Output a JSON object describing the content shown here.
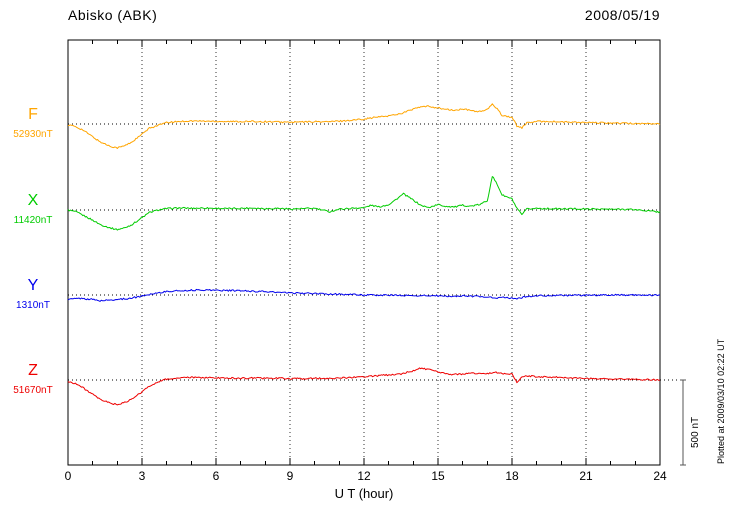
{
  "header": {
    "station": "Abisko (ABK)",
    "date": "2008/05/19"
  },
  "credit": "Plotted at 2009/03/10 02:22 UT",
  "scale_bar": {
    "label": "500 nT",
    "value_nT": 500
  },
  "chart_data": {
    "type": "line",
    "title": "Abisko (ABK) magnetogram 2008/05/19",
    "xlabel": "U T (hour)",
    "xlim": [
      0,
      24
    ],
    "x_ticks": [
      0,
      3,
      6,
      9,
      12,
      15,
      18,
      21,
      24
    ],
    "grid": "dotted vertical lines every 3 hours; dotted horizontal baseline per trace",
    "scale_bar_nT": 500,
    "series": [
      {
        "name": "F",
        "baseline_label": "52930nT",
        "baseline_nT": 52930,
        "color": "#FFA500",
        "points": [
          [
            0,
            -5
          ],
          [
            0.3,
            -15
          ],
          [
            0.6,
            -35
          ],
          [
            1,
            -75
          ],
          [
            1.3,
            -105
          ],
          [
            1.7,
            -130
          ],
          [
            2,
            -140
          ],
          [
            2.3,
            -128
          ],
          [
            2.6,
            -105
          ],
          [
            3,
            -60
          ],
          [
            3.3,
            -25
          ],
          [
            3.7,
            -5
          ],
          [
            4,
            8
          ],
          [
            4.5,
            15
          ],
          [
            5,
            18
          ],
          [
            5.5,
            17
          ],
          [
            6,
            16
          ],
          [
            6.5,
            15
          ],
          [
            7,
            14
          ],
          [
            7.5,
            15
          ],
          [
            8,
            14
          ],
          [
            8.5,
            12
          ],
          [
            9,
            10
          ],
          [
            9.5,
            12
          ],
          [
            10,
            14
          ],
          [
            10.5,
            13
          ],
          [
            11,
            17
          ],
          [
            11.5,
            22
          ],
          [
            12,
            30
          ],
          [
            12.5,
            40
          ],
          [
            13,
            48
          ],
          [
            13.5,
            62
          ],
          [
            14,
            88
          ],
          [
            14.3,
            100
          ],
          [
            14.6,
            104
          ],
          [
            15,
            95
          ],
          [
            15.3,
            86
          ],
          [
            15.7,
            80
          ],
          [
            16,
            88
          ],
          [
            16.3,
            80
          ],
          [
            16.7,
            73
          ],
          [
            17,
            85
          ],
          [
            17.2,
            115
          ],
          [
            17.4,
            92
          ],
          [
            17.6,
            50
          ],
          [
            18,
            40
          ],
          [
            18.2,
            -12
          ],
          [
            18.4,
            -22
          ],
          [
            18.6,
            6
          ],
          [
            19,
            15
          ],
          [
            19.5,
            15
          ],
          [
            20,
            12
          ],
          [
            20.5,
            10
          ],
          [
            21,
            8
          ],
          [
            21.5,
            7
          ],
          [
            22,
            6
          ],
          [
            22.5,
            4
          ],
          [
            23,
            3
          ],
          [
            23.5,
            2
          ],
          [
            24,
            0
          ]
        ]
      },
      {
        "name": "X",
        "baseline_label": "11420nT",
        "baseline_nT": 11420,
        "color": "#00CC00",
        "points": [
          [
            0,
            0
          ],
          [
            0.3,
            -10
          ],
          [
            0.6,
            -30
          ],
          [
            1,
            -60
          ],
          [
            1.3,
            -85
          ],
          [
            1.7,
            -105
          ],
          [
            2,
            -115
          ],
          [
            2.3,
            -105
          ],
          [
            2.6,
            -85
          ],
          [
            3,
            -45
          ],
          [
            3.3,
            -15
          ],
          [
            3.7,
            2
          ],
          [
            4,
            8
          ],
          [
            4.5,
            12
          ],
          [
            5,
            10
          ],
          [
            5.5,
            12
          ],
          [
            6,
            10
          ],
          [
            6.5,
            8
          ],
          [
            7,
            10
          ],
          [
            7.5,
            12
          ],
          [
            8,
            8
          ],
          [
            8.5,
            10
          ],
          [
            9,
            6
          ],
          [
            9.5,
            8
          ],
          [
            10,
            10
          ],
          [
            10.3,
            0
          ],
          [
            10.6,
            -10
          ],
          [
            11,
            5
          ],
          [
            11.5,
            10
          ],
          [
            12,
            14
          ],
          [
            12.3,
            28
          ],
          [
            12.6,
            18
          ],
          [
            13,
            32
          ],
          [
            13.3,
            62
          ],
          [
            13.6,
            95
          ],
          [
            14,
            58
          ],
          [
            14.3,
            28
          ],
          [
            14.6,
            14
          ],
          [
            15,
            32
          ],
          [
            15.3,
            22
          ],
          [
            15.7,
            18
          ],
          [
            16,
            28
          ],
          [
            16.3,
            22
          ],
          [
            16.7,
            32
          ],
          [
            17,
            55
          ],
          [
            17.2,
            200
          ],
          [
            17.4,
            150
          ],
          [
            17.6,
            88
          ],
          [
            18,
            65
          ],
          [
            18.2,
            8
          ],
          [
            18.4,
            -28
          ],
          [
            18.6,
            5
          ],
          [
            19,
            10
          ],
          [
            19.5,
            8
          ],
          [
            20,
            6
          ],
          [
            20.5,
            8
          ],
          [
            21,
            5
          ],
          [
            21.5,
            6
          ],
          [
            22,
            4
          ],
          [
            22.5,
            5
          ],
          [
            23,
            2
          ],
          [
            23.5,
            -5
          ],
          [
            24,
            -12
          ]
        ]
      },
      {
        "name": "Y",
        "baseline_label": "1310nT",
        "baseline_nT": 1310,
        "color": "#0000EE",
        "points": [
          [
            0,
            -25
          ],
          [
            0.5,
            -20
          ],
          [
            1,
            -26
          ],
          [
            1.3,
            -34
          ],
          [
            1.7,
            -30
          ],
          [
            2,
            -26
          ],
          [
            2.5,
            -20
          ],
          [
            3,
            -6
          ],
          [
            3.5,
            10
          ],
          [
            4,
            20
          ],
          [
            4.5,
            25
          ],
          [
            5,
            28
          ],
          [
            5.5,
            30
          ],
          [
            6,
            28
          ],
          [
            6.5,
            26
          ],
          [
            7,
            25
          ],
          [
            7.5,
            22
          ],
          [
            8,
            20
          ],
          [
            8.5,
            15
          ],
          [
            9,
            12
          ],
          [
            9.5,
            10
          ],
          [
            10,
            8
          ],
          [
            10.5,
            6
          ],
          [
            11,
            5
          ],
          [
            11.5,
            3
          ],
          [
            12,
            0
          ],
          [
            12.5,
            -2
          ],
          [
            13,
            0
          ],
          [
            13.5,
            -3
          ],
          [
            14,
            -5
          ],
          [
            14.5,
            -3
          ],
          [
            15,
            -6
          ],
          [
            15.5,
            -8
          ],
          [
            16,
            -5
          ],
          [
            16.5,
            -8
          ],
          [
            17,
            -10
          ],
          [
            17.3,
            -20
          ],
          [
            17.6,
            -14
          ],
          [
            18,
            -18
          ],
          [
            18.2,
            -24
          ],
          [
            18.5,
            -10
          ],
          [
            19,
            -5
          ],
          [
            19.5,
            -3
          ],
          [
            20,
            -2
          ],
          [
            20.5,
            -2
          ],
          [
            21,
            -1
          ],
          [
            22,
            0
          ],
          [
            23,
            0
          ],
          [
            24,
            0
          ]
        ]
      },
      {
        "name": "Z",
        "baseline_label": "51670nT",
        "baseline_nT": 51670,
        "color": "#EE0000",
        "points": [
          [
            0,
            -10
          ],
          [
            0.3,
            -20
          ],
          [
            0.6,
            -45
          ],
          [
            1,
            -85
          ],
          [
            1.3,
            -115
          ],
          [
            1.7,
            -135
          ],
          [
            2,
            -145
          ],
          [
            2.3,
            -133
          ],
          [
            2.6,
            -112
          ],
          [
            3,
            -70
          ],
          [
            3.3,
            -35
          ],
          [
            3.7,
            -8
          ],
          [
            4,
            5
          ],
          [
            4.5,
            12
          ],
          [
            5,
            15
          ],
          [
            5.5,
            14
          ],
          [
            6,
            12
          ],
          [
            6.5,
            12
          ],
          [
            7,
            10
          ],
          [
            7.5,
            12
          ],
          [
            8,
            10
          ],
          [
            8.5,
            10
          ],
          [
            9,
            8
          ],
          [
            9.5,
            8
          ],
          [
            10,
            10
          ],
          [
            10.5,
            10
          ],
          [
            11,
            12
          ],
          [
            11.5,
            15
          ],
          [
            12,
            20
          ],
          [
            12.5,
            25
          ],
          [
            13,
            30
          ],
          [
            13.5,
            36
          ],
          [
            14,
            55
          ],
          [
            14.3,
            70
          ],
          [
            14.6,
            62
          ],
          [
            15,
            46
          ],
          [
            15.5,
            32
          ],
          [
            16,
            36
          ],
          [
            16.5,
            40
          ],
          [
            17,
            38
          ],
          [
            17.3,
            45
          ],
          [
            17.6,
            40
          ],
          [
            18,
            34
          ],
          [
            18.2,
            -14
          ],
          [
            18.4,
            18
          ],
          [
            18.7,
            24
          ],
          [
            19,
            20
          ],
          [
            19.5,
            18
          ],
          [
            20,
            15
          ],
          [
            20.5,
            12
          ],
          [
            21,
            10
          ],
          [
            21.5,
            8
          ],
          [
            22,
            6
          ],
          [
            22.5,
            5
          ],
          [
            23,
            4
          ],
          [
            23.5,
            2
          ],
          [
            24,
            0
          ]
        ]
      }
    ]
  }
}
